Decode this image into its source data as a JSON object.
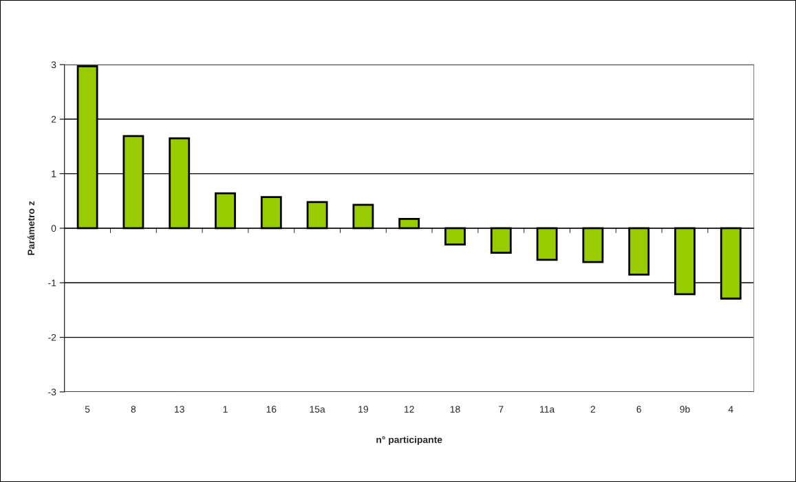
{
  "chart_data": {
    "type": "bar",
    "xlabel": "n° participante",
    "ylabel": "Parámetro z",
    "categories": [
      "5",
      "8",
      "13",
      "1",
      "16",
      "15a",
      "19",
      "12",
      "18",
      "7",
      "11a",
      "2",
      "6",
      "9b",
      "4"
    ],
    "values": [
      2.97,
      1.69,
      1.65,
      0.64,
      0.57,
      0.48,
      0.43,
      0.17,
      -0.3,
      -0.45,
      -0.58,
      -0.62,
      -0.85,
      -1.21,
      -1.29
    ],
    "color": "#99cc00",
    "ylim": [
      -3,
      3
    ],
    "yticks": [
      -3,
      -2,
      -1,
      0,
      1,
      2,
      3
    ],
    "grid": "y",
    "legend": false
  }
}
